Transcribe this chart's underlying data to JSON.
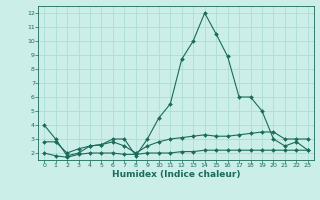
{
  "xlabel": "Humidex (Indice chaleur)",
  "ylabel": "",
  "background_color": "#cceee8",
  "grid_color": "#aaddd5",
  "line_color": "#1a6b5a",
  "xlim": [
    -0.5,
    23.5
  ],
  "ylim": [
    1.5,
    12.5
  ],
  "yticks": [
    2,
    3,
    4,
    5,
    6,
    7,
    8,
    9,
    10,
    11,
    12
  ],
  "xticks": [
    0,
    1,
    2,
    3,
    4,
    5,
    6,
    7,
    8,
    9,
    10,
    11,
    12,
    13,
    14,
    15,
    16,
    17,
    18,
    19,
    20,
    21,
    22,
    23
  ],
  "series": [
    {
      "x": [
        0,
        1,
        2,
        3,
        4,
        5,
        6,
        7,
        8,
        9,
        10,
        11,
        12,
        13,
        14,
        15,
        16,
        17,
        18,
        19,
        20,
        21,
        22,
        23
      ],
      "y": [
        4.0,
        3.0,
        1.8,
        2.0,
        2.5,
        2.6,
        3.0,
        3.0,
        1.8,
        3.0,
        4.5,
        5.5,
        8.7,
        10.0,
        12.0,
        10.5,
        8.9,
        6.0,
        6.0,
        5.0,
        3.0,
        2.5,
        2.8,
        2.2
      ]
    },
    {
      "x": [
        0,
        1,
        2,
        3,
        4,
        5,
        6,
        7,
        8,
        9,
        10,
        11,
        12,
        13,
        14,
        15,
        16,
        17,
        18,
        19,
        20,
        21,
        22,
        23
      ],
      "y": [
        2.8,
        2.8,
        2.0,
        2.3,
        2.5,
        2.6,
        2.8,
        2.5,
        2.0,
        2.5,
        2.8,
        3.0,
        3.1,
        3.2,
        3.3,
        3.2,
        3.2,
        3.3,
        3.4,
        3.5,
        3.5,
        3.0,
        3.0,
        3.0
      ]
    },
    {
      "x": [
        0,
        1,
        2,
        3,
        4,
        5,
        6,
        7,
        8,
        9,
        10,
        11,
        12,
        13,
        14,
        15,
        16,
        17,
        18,
        19,
        20,
        21,
        22,
        23
      ],
      "y": [
        2.0,
        1.8,
        1.7,
        1.9,
        2.0,
        2.0,
        2.0,
        1.9,
        1.9,
        2.0,
        2.0,
        2.0,
        2.1,
        2.1,
        2.2,
        2.2,
        2.2,
        2.2,
        2.2,
        2.2,
        2.2,
        2.2,
        2.2,
        2.2
      ]
    }
  ]
}
